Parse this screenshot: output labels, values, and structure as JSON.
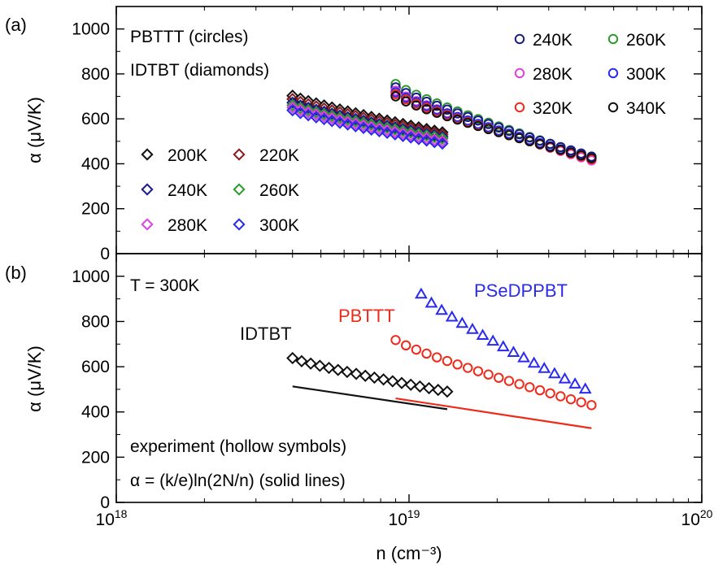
{
  "chart_data": [
    {
      "panel_label": "(a)",
      "type": "scatter",
      "xscale": "log",
      "xlim": [
        1e+18,
        1e+20
      ],
      "ylim": [
        0,
        1100
      ],
      "yticks": [
        0,
        200,
        400,
        600,
        800,
        1000
      ],
      "xlabel": "n (cm⁻³)",
      "ylabel": "α (μV/K)",
      "annotations": [
        "PBTTT (circles)",
        "IDTBT (diamonds)"
      ],
      "legend_circles": {
        "placement": "top-right",
        "entries": [
          {
            "label": "240K",
            "color": "#1a1a8c"
          },
          {
            "label": "260K",
            "color": "#2e9a2e"
          },
          {
            "label": "280K",
            "color": "#e040e0"
          },
          {
            "label": "300K",
            "color": "#2a2aee"
          },
          {
            "label": "320K",
            "color": "#ee2a1a"
          },
          {
            "label": "340K",
            "color": "#111111"
          }
        ]
      },
      "legend_diamonds": {
        "placement": "bottom-left",
        "entries": [
          {
            "label": "200K",
            "color": "#111111"
          },
          {
            "label": "220K",
            "color": "#8b1a1a"
          },
          {
            "label": "240K",
            "color": "#1a1a8c"
          },
          {
            "label": "260K",
            "color": "#2e9a2e"
          },
          {
            "label": "280K",
            "color": "#e040e0"
          },
          {
            "label": "300K",
            "color": "#2a2aee"
          }
        ]
      },
      "series": [
        {
          "marker": "diamond",
          "color": "#111111",
          "x_range": [
            4e+18,
            1.3e+19
          ],
          "y_range": [
            703,
            540
          ],
          "count": 20
        },
        {
          "marker": "diamond",
          "color": "#8b1a1a",
          "x_range": [
            4e+18,
            1.3e+19
          ],
          "y_range": [
            688,
            530
          ],
          "count": 20
        },
        {
          "marker": "diamond",
          "color": "#1a1a8c",
          "x_range": [
            4e+18,
            1.3e+19
          ],
          "y_range": [
            672,
            520
          ],
          "count": 20
        },
        {
          "marker": "diamond",
          "color": "#2e9a2e",
          "x_range": [
            4e+18,
            1.3e+19
          ],
          "y_range": [
            660,
            512
          ],
          "count": 20
        },
        {
          "marker": "diamond",
          "color": "#e040e0",
          "x_range": [
            4e+18,
            1.3e+19
          ],
          "y_range": [
            650,
            500
          ],
          "count": 20
        },
        {
          "marker": "diamond",
          "color": "#2a2aee",
          "x_range": [
            4e+18,
            1.3e+19
          ],
          "y_range": [
            638,
            490
          ],
          "count": 20
        },
        {
          "marker": "circle",
          "color": "#2e9a2e",
          "x_range": [
            9e+18,
            4.2e+19
          ],
          "y_range": [
            755,
            430
          ],
          "count": 20
        },
        {
          "marker": "circle",
          "color": "#1a1a8c",
          "x_range": [
            9e+18,
            4.2e+19
          ],
          "y_range": [
            740,
            432
          ],
          "count": 20
        },
        {
          "marker": "circle",
          "color": "#e040e0",
          "x_range": [
            9e+18,
            4.2e+19
          ],
          "y_range": [
            725,
            415
          ],
          "count": 20
        },
        {
          "marker": "circle",
          "color": "#2a2aee",
          "x_range": [
            9e+18,
            4.2e+19
          ],
          "y_range": [
            718,
            425
          ],
          "count": 20
        },
        {
          "marker": "circle",
          "color": "#ee2a1a",
          "x_range": [
            9e+18,
            4.2e+19
          ],
          "y_range": [
            710,
            420
          ],
          "count": 20
        },
        {
          "marker": "circle",
          "color": "#111111",
          "x_range": [
            9e+18,
            4.2e+19
          ],
          "y_range": [
            700,
            425
          ],
          "count": 20
        }
      ]
    },
    {
      "panel_label": "(b)",
      "type": "scatter",
      "xscale": "log",
      "xlim": [
        1e+18,
        1e+20
      ],
      "ylim": [
        0,
        1100
      ],
      "yticks": [
        0,
        200,
        400,
        600,
        800,
        1000
      ],
      "xticks": [
        1e+18,
        1e+19,
        1e+20
      ],
      "xlabel": "n (cm⁻³)",
      "ylabel": "α (μV/K)",
      "annotations": [
        "T = 300K",
        "experiment (hollow symbols)",
        "α = (k/e)ln(2N/n) (solid lines)"
      ],
      "series": [
        {
          "name": "IDTBT",
          "marker": "diamond",
          "color": "#111111",
          "x_range": [
            4e+18,
            1.35e+19
          ],
          "y_range": [
            638,
            490
          ],
          "count": 18
        },
        {
          "name": "PBTTT",
          "marker": "circle",
          "color": "#ee2a1a",
          "x_range": [
            9e+18,
            4.2e+19
          ],
          "y_range": [
            718,
            430
          ],
          "count": 20
        },
        {
          "name": "PSeDPPBT",
          "marker": "triangle",
          "color": "#2a2aee",
          "x_range": [
            1.1e+19,
            4e+19
          ],
          "y_range": [
            920,
            500
          ],
          "count": 17
        }
      ],
      "lines": [
        {
          "color": "#111111",
          "x": [
            4e+18,
            1.35e+19
          ],
          "y": [
            513,
            412
          ]
        },
        {
          "color": "#ee2a1a",
          "x": [
            9e+18,
            4.2e+19
          ],
          "y": [
            460,
            328
          ]
        }
      ]
    }
  ]
}
